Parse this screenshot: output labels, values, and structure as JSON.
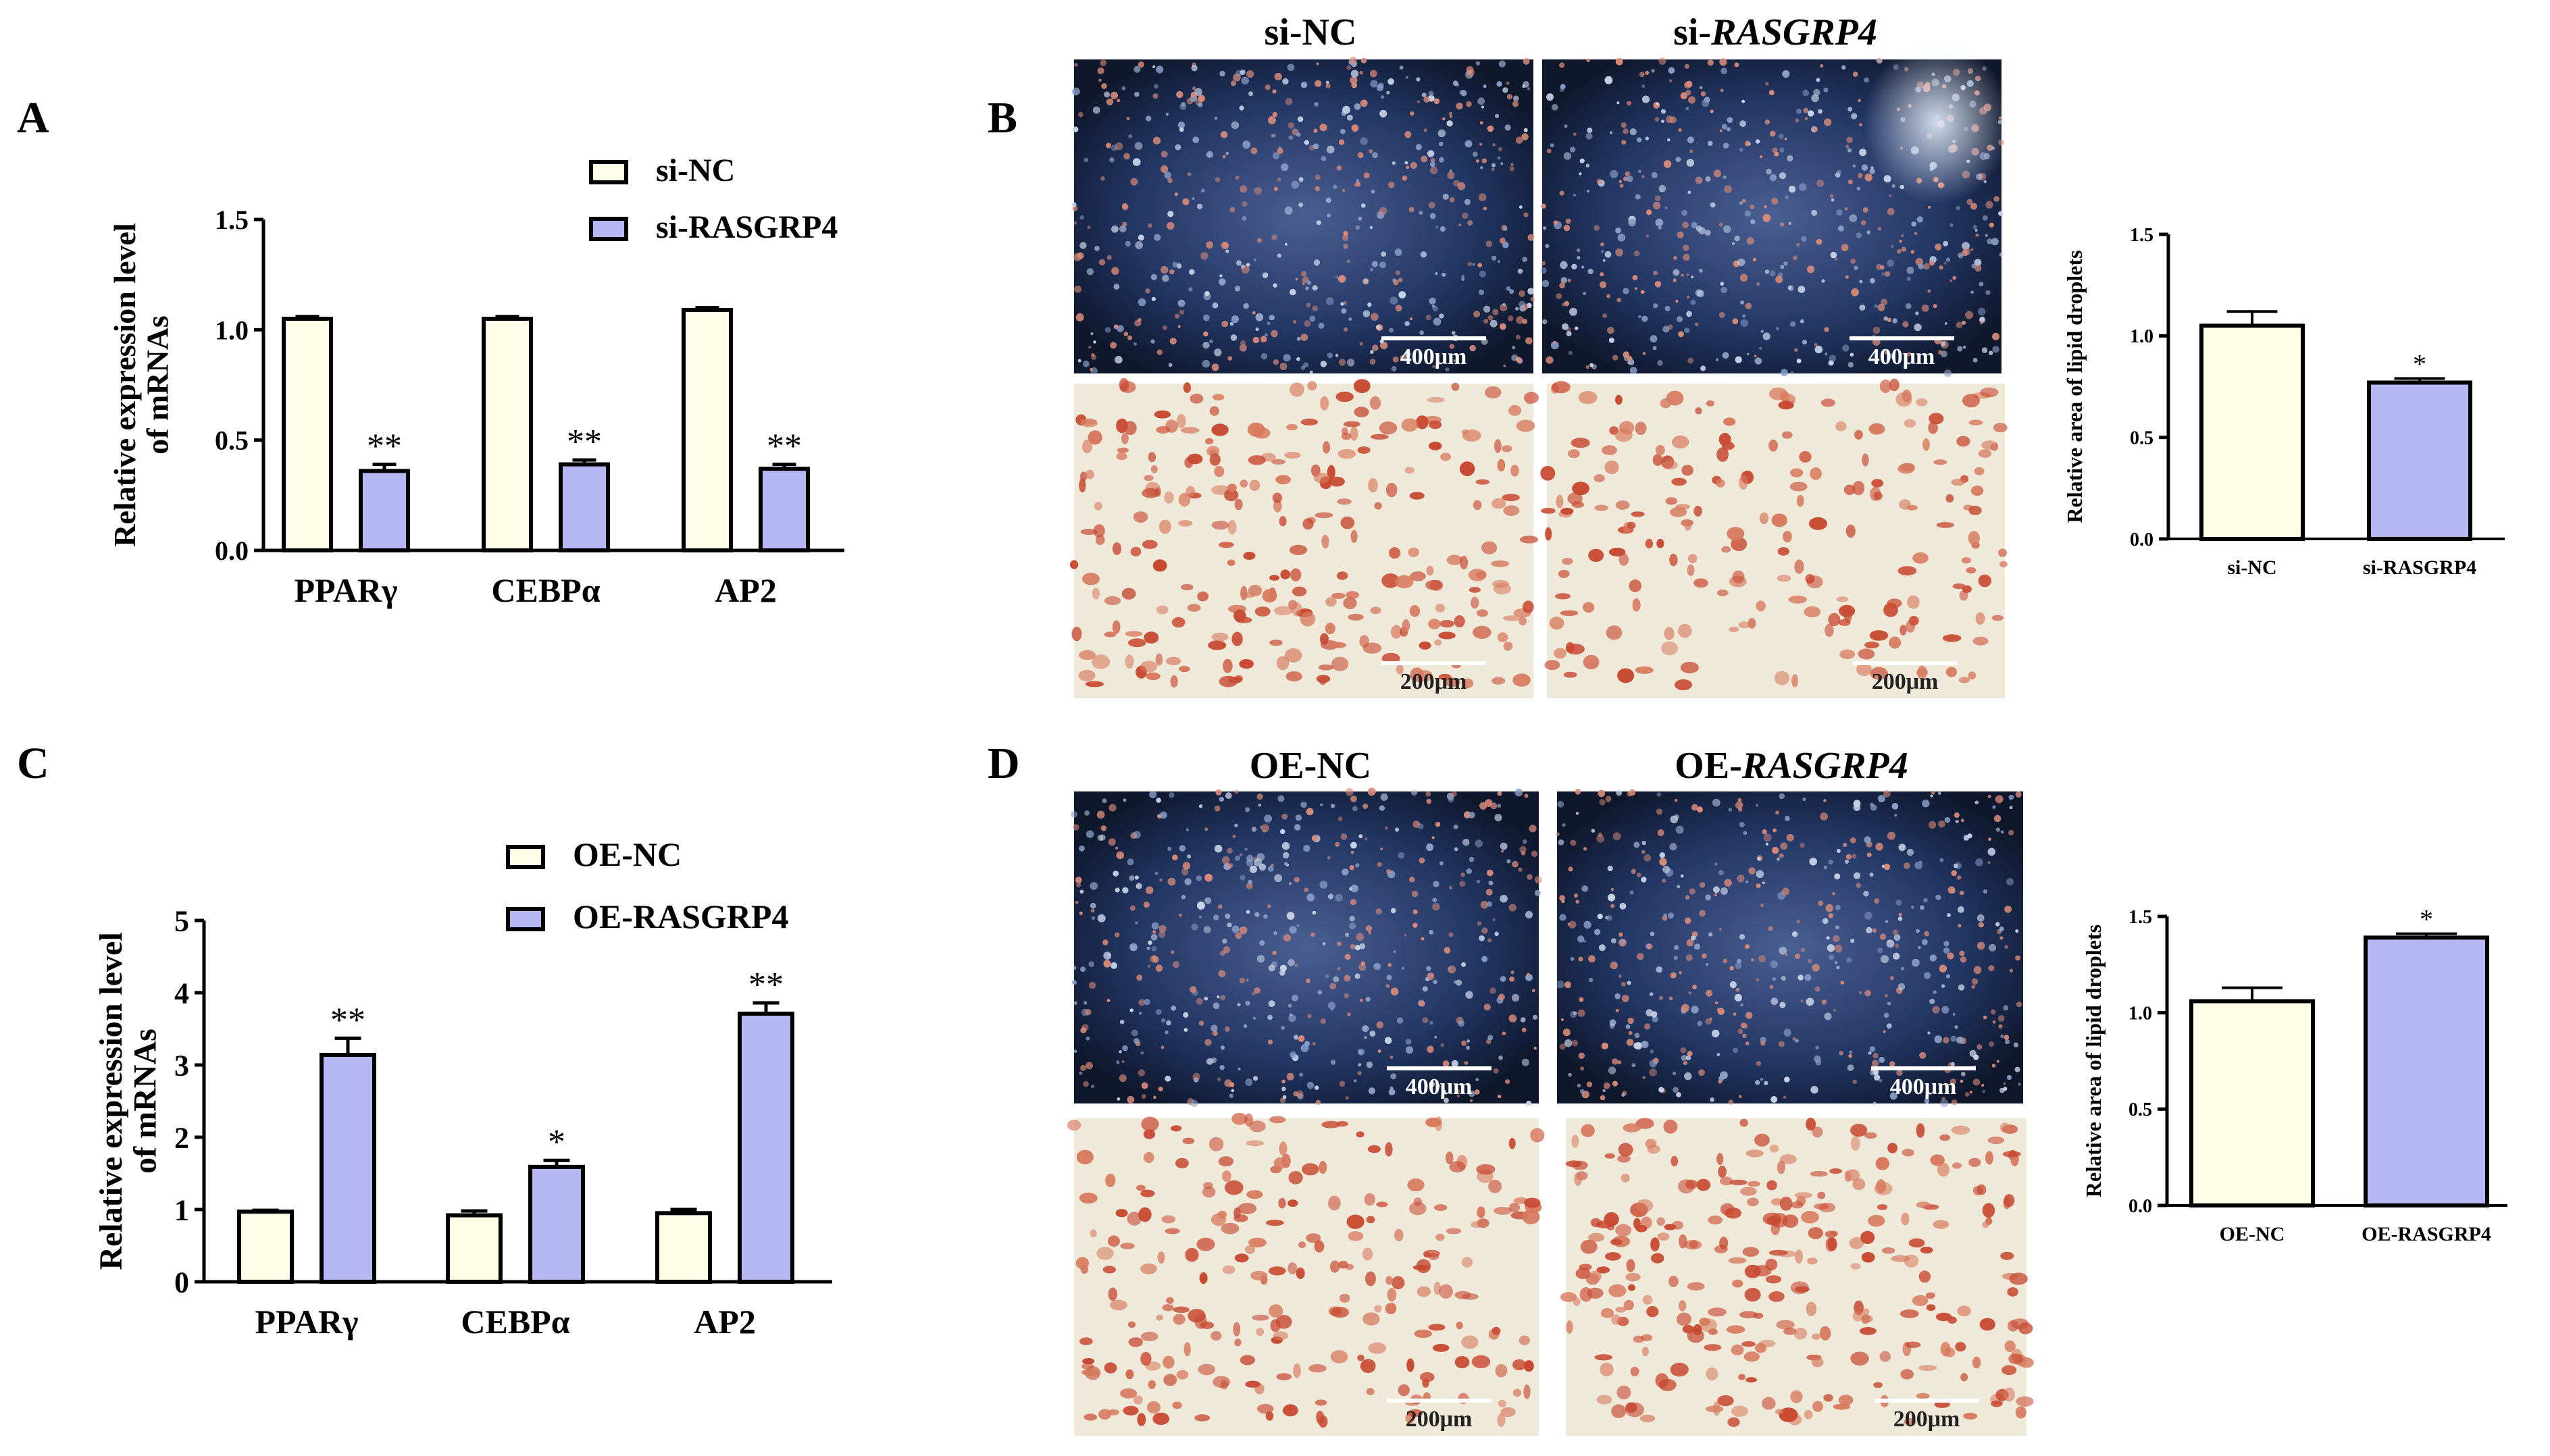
{
  "colors": {
    "control_fill": "#fffde7",
    "treatment_fill": "#b7b7f3",
    "bar_stroke": "#000000",
    "dark_field": "#1f2d52",
    "bright_field": "#efe9da",
    "stain_dot": "#c84a32"
  },
  "panel_letters": {
    "A": "A",
    "B": "B",
    "C": "C",
    "D": "D"
  },
  "panel_B": {
    "title_left": "si-NC",
    "title_right_prefix": "si-",
    "title_right_italic": "RASGRP4",
    "scale_top_left": "400μm",
    "scale_top_right": "400μm",
    "scale_bottom_left": "200μm",
    "scale_bottom_right": "200μm"
  },
  "panel_D": {
    "title_left": "OE-NC",
    "title_right_prefix": "OE-",
    "title_right_italic": "RASGRP4",
    "scale_top_left": "400μm",
    "scale_top_right": "400μm",
    "scale_bottom_left": "200μm",
    "scale_bottom_right": "200μm"
  },
  "chart_data": [
    {
      "id": "A",
      "type": "bar",
      "categories": [
        "PPARγ",
        "CEBPα",
        "AP2"
      ],
      "series": [
        {
          "name": "si-NC",
          "values": [
            1.05,
            1.05,
            1.09
          ],
          "errors": [
            0.01,
            0.01,
            0.01
          ],
          "sig": [
            "",
            "",
            ""
          ]
        },
        {
          "name": "si-RASGRP4",
          "values": [
            0.36,
            0.39,
            0.37
          ],
          "errors": [
            0.03,
            0.02,
            0.02
          ],
          "sig": [
            "**",
            "**",
            "**"
          ]
        }
      ],
      "ylabel_lines": [
        "Relative expression level",
        "of mRNAs"
      ],
      "ylim": [
        0,
        1.5
      ],
      "yticks": [
        "0.0",
        "0.5",
        "1.0",
        "1.5"
      ],
      "legend": "top-right"
    },
    {
      "id": "B",
      "type": "bar",
      "categories": [
        "si-NC",
        "si-RASGRP4"
      ],
      "values": [
        1.05,
        0.77
      ],
      "errors": [
        0.07,
        0.02
      ],
      "sig": [
        "",
        "*"
      ],
      "ylabel_lines": [
        "Relative area of lipid droplets"
      ],
      "ylim": [
        0,
        1.5
      ],
      "yticks": [
        "0.0",
        "0.5",
        "1.0",
        "1.5"
      ]
    },
    {
      "id": "C",
      "type": "bar",
      "categories": [
        "PPARγ",
        "CEBPα",
        "AP2"
      ],
      "series": [
        {
          "name": "OE-NC",
          "values": [
            0.97,
            0.92,
            0.95
          ],
          "errors": [
            0.02,
            0.06,
            0.05
          ],
          "sig": [
            "",
            "",
            ""
          ]
        },
        {
          "name": "OE-RASGRP4",
          "values": [
            3.14,
            1.59,
            3.71
          ],
          "errors": [
            0.23,
            0.09,
            0.15
          ],
          "sig": [
            "**",
            "*",
            "**"
          ]
        }
      ],
      "ylabel_lines": [
        "Relative expression level",
        "of mRNAs"
      ],
      "ylim": [
        0,
        5
      ],
      "yticks": [
        "0",
        "1",
        "2",
        "3",
        "4",
        "5"
      ],
      "legend": "top-right"
    },
    {
      "id": "D",
      "type": "bar",
      "categories": [
        "OE-NC",
        "OE-RASGRP4"
      ],
      "values": [
        1.06,
        1.39
      ],
      "errors": [
        0.07,
        0.02
      ],
      "sig": [
        "",
        "*"
      ],
      "ylabel_lines": [
        "Relative area of lipid droplets"
      ],
      "ylim": [
        0,
        1.5
      ],
      "yticks": [
        "0.0",
        "0.5",
        "1.0",
        "1.5"
      ]
    }
  ]
}
